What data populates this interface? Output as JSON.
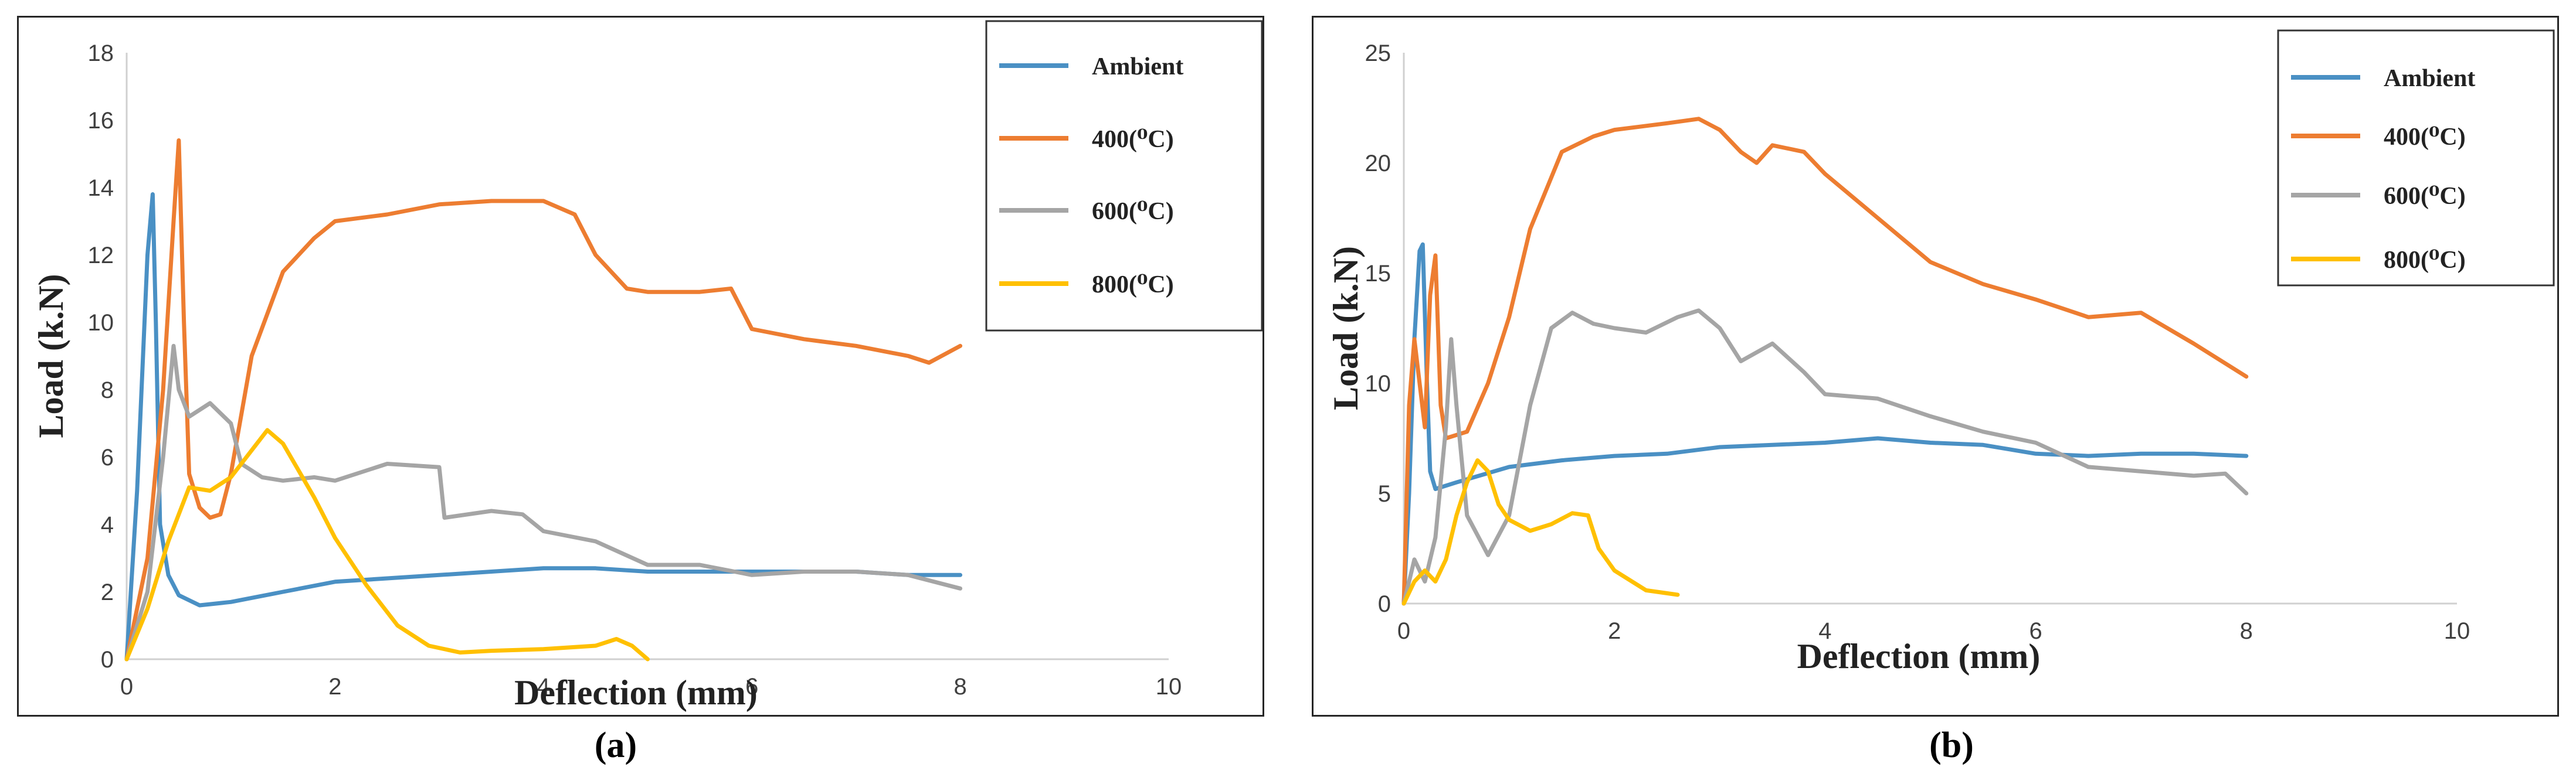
{
  "captions": {
    "a": "(a)",
    "b": "(b)"
  },
  "chart_data": [
    {
      "type": "line",
      "panel": "a",
      "xlabel": "Deflection (mm)",
      "ylabel": "Load (k.N)",
      "xlim": [
        0,
        10
      ],
      "ylim": [
        0,
        18
      ],
      "xticks": [
        0,
        2,
        4,
        6,
        8,
        10
      ],
      "yticks": [
        0,
        2,
        4,
        6,
        8,
        10,
        12,
        14,
        16,
        18
      ],
      "grid": false,
      "legend_position": "top-right",
      "series": [
        {
          "name": "Ambient",
          "color": "#4a90c4",
          "points": [
            [
              0,
              0
            ],
            [
              0.1,
              5
            ],
            [
              0.2,
              12
            ],
            [
              0.25,
              13.8
            ],
            [
              0.28,
              10
            ],
            [
              0.32,
              4
            ],
            [
              0.4,
              2.5
            ],
            [
              0.5,
              1.9
            ],
            [
              0.7,
              1.6
            ],
            [
              1,
              1.7
            ],
            [
              1.5,
              2
            ],
            [
              2,
              2.3
            ],
            [
              2.5,
              2.4
            ],
            [
              3,
              2.5
            ],
            [
              3.5,
              2.6
            ],
            [
              4,
              2.7
            ],
            [
              4.5,
              2.7
            ],
            [
              5,
              2.6
            ],
            [
              5.5,
              2.6
            ],
            [
              6,
              2.6
            ],
            [
              6.5,
              2.6
            ],
            [
              7,
              2.6
            ],
            [
              7.5,
              2.5
            ],
            [
              8,
              2.5
            ]
          ]
        },
        {
          "name": "400(⁰C)",
          "color": "#ed7d31",
          "points": [
            [
              0,
              0
            ],
            [
              0.2,
              3
            ],
            [
              0.35,
              8
            ],
            [
              0.45,
              13
            ],
            [
              0.5,
              15.4
            ],
            [
              0.55,
              10
            ],
            [
              0.6,
              5.5
            ],
            [
              0.7,
              4.5
            ],
            [
              0.8,
              4.2
            ],
            [
              0.9,
              4.3
            ],
            [
              1,
              5.5
            ],
            [
              1.2,
              9
            ],
            [
              1.5,
              11.5
            ],
            [
              1.8,
              12.5
            ],
            [
              2,
              13
            ],
            [
              2.5,
              13.2
            ],
            [
              3,
              13.5
            ],
            [
              3.5,
              13.6
            ],
            [
              4,
              13.6
            ],
            [
              4.3,
              13.2
            ],
            [
              4.5,
              12
            ],
            [
              4.8,
              11
            ],
            [
              5,
              10.9
            ],
            [
              5.5,
              10.9
            ],
            [
              5.8,
              11
            ],
            [
              6,
              9.8
            ],
            [
              6.5,
              9.5
            ],
            [
              7,
              9.3
            ],
            [
              7.5,
              9
            ],
            [
              7.7,
              8.8
            ],
            [
              8,
              9.3
            ]
          ]
        },
        {
          "name": "600(⁰C)",
          "color": "#a5a5a5",
          "points": [
            [
              0,
              0
            ],
            [
              0.2,
              2
            ],
            [
              0.35,
              6
            ],
            [
              0.45,
              9.3
            ],
            [
              0.5,
              8
            ],
            [
              0.6,
              7.2
            ],
            [
              0.8,
              7.6
            ],
            [
              1,
              7
            ],
            [
              1.1,
              5.8
            ],
            [
              1.3,
              5.4
            ],
            [
              1.5,
              5.3
            ],
            [
              1.8,
              5.4
            ],
            [
              2,
              5.3
            ],
            [
              2.5,
              5.8
            ],
            [
              3,
              5.7
            ],
            [
              3.05,
              4.2
            ],
            [
              3.5,
              4.4
            ],
            [
              3.8,
              4.3
            ],
            [
              4,
              3.8
            ],
            [
              4.5,
              3.5
            ],
            [
              5,
              2.8
            ],
            [
              5.5,
              2.8
            ],
            [
              6,
              2.5
            ],
            [
              6.5,
              2.6
            ],
            [
              7,
              2.6
            ],
            [
              7.5,
              2.5
            ],
            [
              8,
              2.1
            ]
          ]
        },
        {
          "name": "800(⁰C)",
          "color": "#ffc000",
          "points": [
            [
              0,
              0
            ],
            [
              0.2,
              1.5
            ],
            [
              0.4,
              3.5
            ],
            [
              0.6,
              5.1
            ],
            [
              0.8,
              5
            ],
            [
              1,
              5.4
            ],
            [
              1.2,
              6.2
            ],
            [
              1.35,
              6.8
            ],
            [
              1.5,
              6.4
            ],
            [
              1.8,
              4.8
            ],
            [
              2,
              3.6
            ],
            [
              2.3,
              2.2
            ],
            [
              2.6,
              1
            ],
            [
              2.9,
              0.4
            ],
            [
              3.2,
              0.2
            ],
            [
              3.5,
              0.25
            ],
            [
              4,
              0.3
            ],
            [
              4.5,
              0.4
            ],
            [
              4.7,
              0.6
            ],
            [
              4.85,
              0.4
            ],
            [
              5,
              0
            ]
          ]
        }
      ]
    },
    {
      "type": "line",
      "panel": "b",
      "xlabel": "Deflection (mm)",
      "ylabel": "Load (k.N)",
      "xlim": [
        0,
        10
      ],
      "ylim": [
        0,
        25
      ],
      "xticks": [
        0,
        2,
        4,
        6,
        8,
        10
      ],
      "yticks": [
        0,
        5,
        10,
        15,
        20,
        25
      ],
      "grid": false,
      "legend_position": "top-right",
      "series": [
        {
          "name": "Ambient",
          "color": "#4a90c4",
          "points": [
            [
              0,
              0
            ],
            [
              0.05,
              5
            ],
            [
              0.1,
              12
            ],
            [
              0.15,
              16
            ],
            [
              0.18,
              16.3
            ],
            [
              0.22,
              10
            ],
            [
              0.25,
              6
            ],
            [
              0.3,
              5.2
            ],
            [
              0.5,
              5.5
            ],
            [
              1,
              6.2
            ],
            [
              1.5,
              6.5
            ],
            [
              2,
              6.7
            ],
            [
              2.5,
              6.8
            ],
            [
              3,
              7.1
            ],
            [
              3.5,
              7.2
            ],
            [
              4,
              7.3
            ],
            [
              4.5,
              7.5
            ],
            [
              5,
              7.3
            ],
            [
              5.5,
              7.2
            ],
            [
              6,
              6.8
            ],
            [
              6.5,
              6.7
            ],
            [
              7,
              6.8
            ],
            [
              7.5,
              6.8
            ],
            [
              8,
              6.7
            ]
          ]
        },
        {
          "name": "400(⁰C)",
          "color": "#ed7d31",
          "points": [
            [
              0,
              0
            ],
            [
              0.05,
              9
            ],
            [
              0.1,
              12
            ],
            [
              0.15,
              10
            ],
            [
              0.2,
              8
            ],
            [
              0.25,
              14
            ],
            [
              0.3,
              15.8
            ],
            [
              0.35,
              9
            ],
            [
              0.4,
              7.5
            ],
            [
              0.6,
              7.8
            ],
            [
              0.8,
              10
            ],
            [
              1,
              13
            ],
            [
              1.2,
              17
            ],
            [
              1.5,
              20.5
            ],
            [
              1.8,
              21.2
            ],
            [
              2,
              21.5
            ],
            [
              2.5,
              21.8
            ],
            [
              2.8,
              22
            ],
            [
              3,
              21.5
            ],
            [
              3.2,
              20.5
            ],
            [
              3.35,
              20
            ],
            [
              3.5,
              20.8
            ],
            [
              3.8,
              20.5
            ],
            [
              4,
              19.5
            ],
            [
              4.5,
              17.5
            ],
            [
              5,
              15.5
            ],
            [
              5.5,
              14.5
            ],
            [
              6,
              13.8
            ],
            [
              6.5,
              13
            ],
            [
              7,
              13.2
            ],
            [
              7.5,
              11.8
            ],
            [
              8,
              10.3
            ]
          ]
        },
        {
          "name": "600(⁰C)",
          "color": "#a5a5a5",
          "points": [
            [
              0,
              0
            ],
            [
              0.1,
              2
            ],
            [
              0.2,
              1
            ],
            [
              0.3,
              3
            ],
            [
              0.4,
              8
            ],
            [
              0.45,
              12
            ],
            [
              0.5,
              9
            ],
            [
              0.6,
              4
            ],
            [
              0.8,
              2.2
            ],
            [
              1,
              4
            ],
            [
              1.2,
              9
            ],
            [
              1.4,
              12.5
            ],
            [
              1.6,
              13.2
            ],
            [
              1.8,
              12.7
            ],
            [
              2,
              12.5
            ],
            [
              2.3,
              12.3
            ],
            [
              2.6,
              13
            ],
            [
              2.8,
              13.3
            ],
            [
              3,
              12.5
            ],
            [
              3.2,
              11
            ],
            [
              3.5,
              11.8
            ],
            [
              3.8,
              10.5
            ],
            [
              4,
              9.5
            ],
            [
              4.5,
              9.3
            ],
            [
              5,
              8.5
            ],
            [
              5.5,
              7.8
            ],
            [
              6,
              7.3
            ],
            [
              6.5,
              6.2
            ],
            [
              7,
              6
            ],
            [
              7.5,
              5.8
            ],
            [
              7.8,
              5.9
            ],
            [
              8,
              5
            ]
          ]
        },
        {
          "name": "800(⁰C)",
          "color": "#ffc000",
          "points": [
            [
              0,
              0
            ],
            [
              0.1,
              1
            ],
            [
              0.2,
              1.5
            ],
            [
              0.3,
              1
            ],
            [
              0.4,
              2
            ],
            [
              0.5,
              4
            ],
            [
              0.6,
              5.5
            ],
            [
              0.7,
              6.5
            ],
            [
              0.8,
              6
            ],
            [
              0.9,
              4.5
            ],
            [
              1,
              3.8
            ],
            [
              1.2,
              3.3
            ],
            [
              1.4,
              3.6
            ],
            [
              1.6,
              4.1
            ],
            [
              1.75,
              4
            ],
            [
              1.85,
              2.5
            ],
            [
              2,
              1.5
            ],
            [
              2.3,
              0.6
            ],
            [
              2.6,
              0.4
            ]
          ]
        }
      ]
    }
  ]
}
